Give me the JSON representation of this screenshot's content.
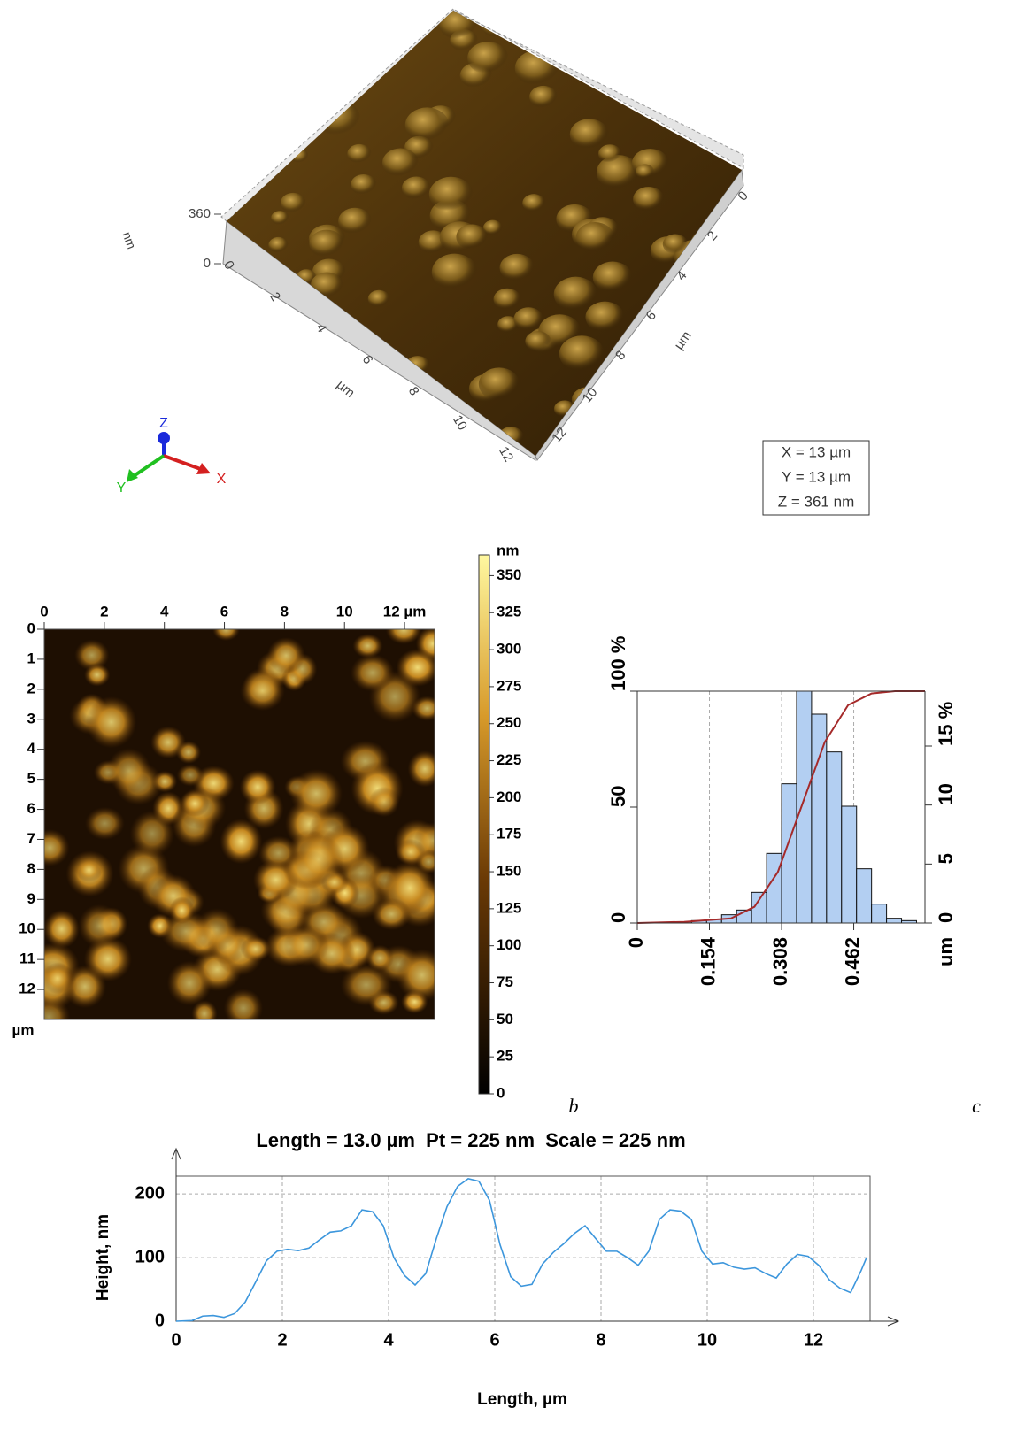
{
  "chart_data": [
    {
      "type": "surface3d",
      "zlabel": "nm",
      "zlim": [
        0,
        360
      ],
      "zticks": [
        0,
        360
      ],
      "xlabel": "µm",
      "xticks": [
        0,
        2,
        4,
        6,
        8,
        10,
        12
      ],
      "ylabel": "µm",
      "yticks": [
        0,
        2,
        4,
        6,
        8,
        10,
        12
      ],
      "axes": [
        "Z",
        "Y",
        "X"
      ],
      "info": [
        "X = 13 µm",
        "Y = 13 µm",
        "Z = 361 nm"
      ]
    },
    {
      "type": "heatmap",
      "label": "b",
      "xlim": [
        0,
        13
      ],
      "xticks": [
        0,
        2,
        4,
        6,
        8,
        10,
        {
          "value": 12,
          "label": "12 µm"
        }
      ],
      "ylim": [
        0,
        13
      ],
      "yticks": [
        0,
        1,
        2,
        3,
        4,
        5,
        6,
        7,
        8,
        9,
        10,
        11,
        12
      ],
      "ylabel": "µm",
      "colorbar": {
        "label": "nm",
        "lim": [
          0,
          364
        ],
        "ticks": [
          0,
          25,
          50,
          75,
          100,
          125,
          150,
          175,
          200,
          225,
          250,
          275,
          300,
          325,
          350
        ]
      }
    },
    {
      "type": "histogram",
      "label": "c",
      "bins": [
        0.084,
        0.116,
        0.148,
        0.18,
        0.212,
        0.244,
        0.276,
        0.308,
        0.34,
        0.372,
        0.404,
        0.436,
        0.468,
        0.5,
        0.532,
        0.564,
        0.596
      ],
      "values": [
        0.1,
        0.2,
        0.3,
        0.7,
        1.1,
        2.6,
        5.9,
        11.8,
        19.65,
        17.7,
        14.5,
        9.9,
        4.6,
        1.6,
        0.4,
        0.2
      ],
      "axis": "y2",
      "color": "#b3cff2",
      "xlim": [
        0,
        0.614
      ],
      "xticks": [
        0,
        0.154,
        0.308,
        0.462
      ],
      "xlabel": "um",
      "grid": true,
      "ylim": [
        0,
        100
      ],
      "yticks": [
        0,
        50,
        {
          "value": 100,
          "label": "100 %"
        }
      ],
      "y2lim": [
        0,
        19.65
      ],
      "y2ticks": [
        0,
        5,
        10,
        {
          "value": 15,
          "label": "15 %"
        }
      ],
      "cumulative": {
        "color": "#a52a2a",
        "x": [
          0,
          0.1,
          0.2,
          0.25,
          0.3,
          0.35,
          0.4,
          0.45,
          0.5,
          0.55,
          0.614
        ],
        "values": [
          0,
          0.5,
          2,
          7,
          22,
          50,
          78,
          94,
          99,
          100,
          100
        ]
      }
    },
    {
      "type": "line",
      "title": "Length = 13.0 µm  Pt = 225 nm  Scale = 225 nm",
      "xlabel": "Length, µm",
      "ylabel": "Height, nm",
      "color": "#3c96dc",
      "grid": true,
      "xlim": [
        0,
        13
      ],
      "xticks": [
        0,
        2,
        4,
        6,
        8,
        10,
        12
      ],
      "ylim": [
        0,
        228
      ],
      "yticks": [
        0,
        100,
        200
      ],
      "x": [
        0,
        0.3,
        0.5,
        0.7,
        0.9,
        1.1,
        1.3,
        1.5,
        1.7,
        1.9,
        2.1,
        2.3,
        2.5,
        2.7,
        2.9,
        3.1,
        3.3,
        3.5,
        3.7,
        3.9,
        4.1,
        4.3,
        4.5,
        4.7,
        4.9,
        5.1,
        5.3,
        5.5,
        5.7,
        5.9,
        6.1,
        6.3,
        6.5,
        6.7,
        6.9,
        7.1,
        7.3,
        7.5,
        7.7,
        7.9,
        8.1,
        8.3,
        8.5,
        8.7,
        8.9,
        9.1,
        9.3,
        9.5,
        9.7,
        9.9,
        10.1,
        10.3,
        10.5,
        10.7,
        10.9,
        11.1,
        11.3,
        11.5,
        11.7,
        11.9,
        12.1,
        12.3,
        12.5,
        12.7,
        12.9,
        13
      ],
      "values": [
        0,
        1,
        8,
        9,
        6,
        12,
        30,
        62,
        95,
        110,
        113,
        111,
        115,
        128,
        140,
        142,
        150,
        175,
        172,
        150,
        100,
        72,
        57,
        75,
        130,
        180,
        212,
        224,
        220,
        190,
        120,
        70,
        55,
        58,
        90,
        108,
        122,
        138,
        150,
        130,
        110,
        110,
        100,
        88,
        110,
        160,
        175,
        173,
        160,
        110,
        90,
        92,
        85,
        82,
        84,
        75,
        68,
        90,
        105,
        102,
        88,
        65,
        52,
        45,
        80,
        100
      ]
    }
  ]
}
